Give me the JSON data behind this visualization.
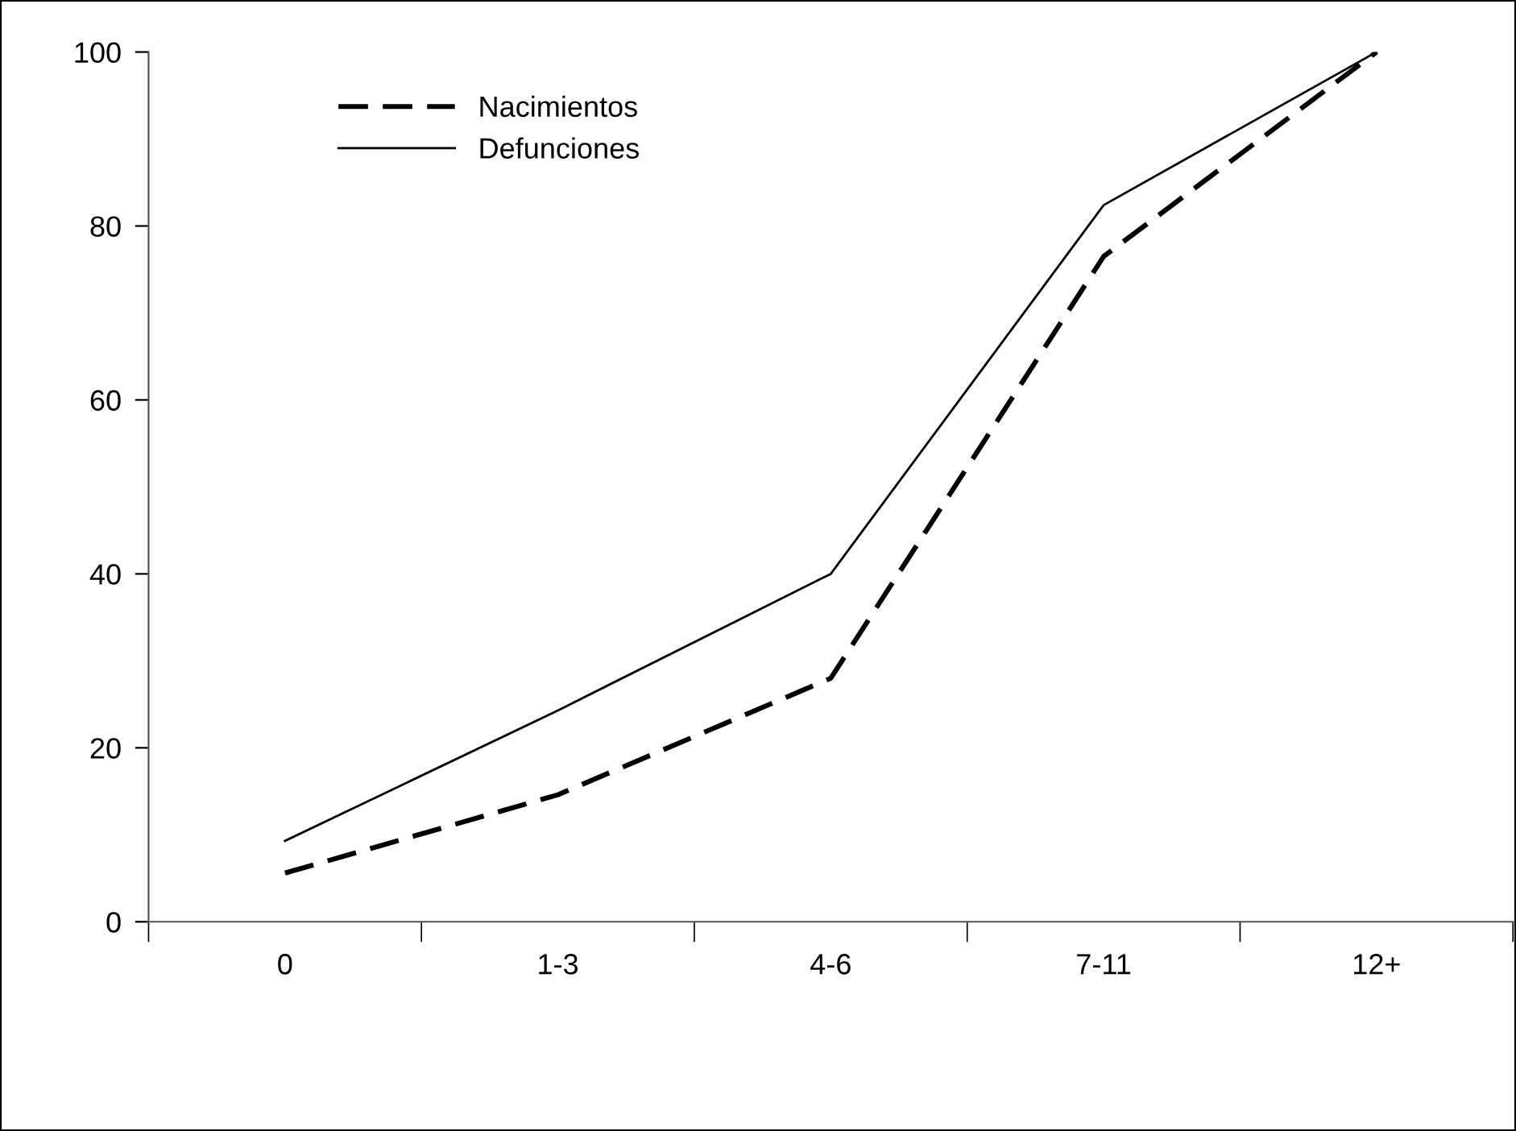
{
  "chart_data": {
    "type": "line",
    "categories": [
      "0",
      "1-3",
      "4-6",
      "7-11",
      "12+"
    ],
    "series": [
      {
        "name": "Nacimientos",
        "color": "#000000",
        "line_style": "dashed",
        "values": [
          5.6,
          14.6,
          28,
          76.5,
          100
        ]
      },
      {
        "name": "Defunciones",
        "color": "#000000",
        "line_style": "solid",
        "values": [
          9.3,
          24.3,
          40,
          82.4,
          100
        ]
      }
    ],
    "ylim": [
      0,
      100
    ],
    "yticks": [
      0,
      20,
      40,
      60,
      80,
      100
    ],
    "grid": false,
    "legend": "top left",
    "marker": "none"
  }
}
